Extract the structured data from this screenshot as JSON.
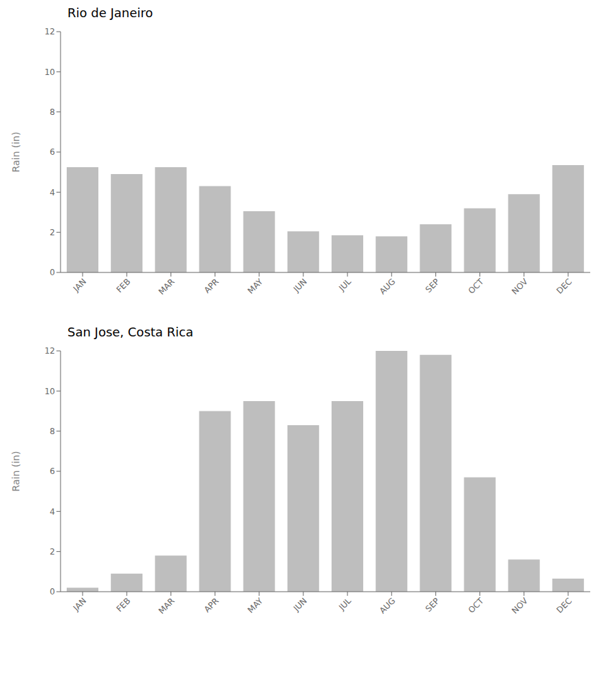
{
  "chart_data": [
    {
      "type": "bar",
      "title": "Rio de Janeiro",
      "categories": [
        "JAN",
        "FEB",
        "MAR",
        "APR",
        "MAY",
        "JUN",
        "JUL",
        "AUG",
        "SEP",
        "OCT",
        "NOV",
        "DEC"
      ],
      "values": [
        5.25,
        4.9,
        5.25,
        4.3,
        3.05,
        2.05,
        1.85,
        1.8,
        2.4,
        3.2,
        3.9,
        5.35
      ],
      "color": "#bebebe",
      "ylabel": "Rain (in)",
      "ylim": [
        0,
        12
      ],
      "yticks": [
        0,
        2,
        4,
        6,
        8,
        10,
        12
      ],
      "grid": false
    },
    {
      "type": "bar",
      "title": "San Jose, Costa Rica",
      "categories": [
        "JAN",
        "FEB",
        "MAR",
        "APR",
        "MAY",
        "JUN",
        "JUL",
        "AUG",
        "SEP",
        "OCT",
        "NOV",
        "DEC"
      ],
      "values": [
        0.2,
        0.9,
        1.8,
        9.0,
        9.5,
        8.3,
        9.5,
        12.0,
        11.8,
        5.7,
        1.6,
        0.65
      ],
      "color": "#bebebe",
      "ylabel": "Rain (in)",
      "ylim": [
        0,
        12
      ],
      "yticks": [
        0,
        2,
        4,
        6,
        8,
        10,
        12
      ],
      "grid": false
    }
  ]
}
